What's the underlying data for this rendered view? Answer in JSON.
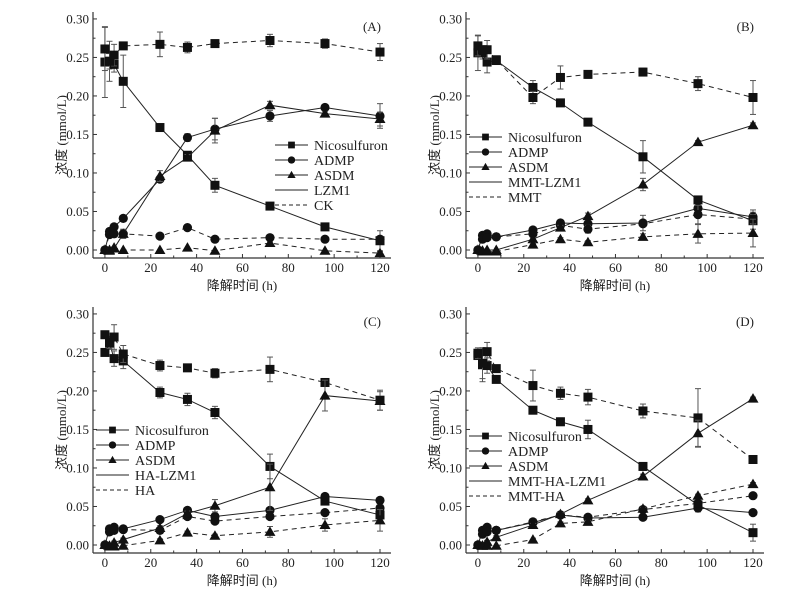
{
  "figure": {
    "panels_count": 4
  },
  "chart_data": [
    {
      "type": "line",
      "panel_label": "(A)",
      "xlabel": "降解时间 (h)",
      "ylabel": "浓度 (mmol/L)",
      "xlim": [
        -5.2,
        124.8
      ],
      "ylim": [
        -0.0104,
        0.309
      ],
      "xticks": [
        "0",
        "20",
        "40",
        "60",
        "80",
        "100",
        "120"
      ],
      "yticks": [
        "0.00",
        "0.05",
        "0.10",
        "0.15",
        "0.20",
        "0.25",
        "0.30"
      ],
      "legend_position": "center-right",
      "legend": [
        {
          "label": "Nicosulfuron",
          "marker": "square",
          "line": "solid"
        },
        {
          "label": "ADMP",
          "marker": "circle",
          "line": "solid"
        },
        {
          "label": "ASDM",
          "marker": "triangle",
          "line": "solid"
        },
        {
          "label": "LZM1",
          "marker": "none",
          "line": "solid"
        },
        {
          "label": "CK",
          "marker": "none",
          "line": "dashed"
        }
      ],
      "x": [
        0,
        2,
        4,
        8,
        24,
        36,
        48,
        72,
        96,
        120
      ],
      "series": [
        {
          "name": "Nicosulfuron LZM1",
          "marker": "square",
          "line": "solid",
          "values": [
            0.244,
            0.245,
            0.241,
            0.219,
            0.159,
            0.123,
            0.084,
            0.057,
            0.03,
            0.012
          ],
          "err": [
            0.046,
            0.01,
            0.01,
            0.034,
            0.002,
            0.004,
            0.009,
            0.003,
            0.002,
            0.013
          ]
        },
        {
          "name": "Nicosulfuron CK",
          "marker": "square",
          "line": "dashed",
          "values": [
            0.261,
            0.245,
            0.253,
            0.265,
            0.267,
            0.263,
            0.268,
            0.272,
            0.268,
            0.257
          ],
          "err": [
            0.028,
            0.026,
            0.014,
            0.002,
            0.016,
            0.007,
            0.002,
            0.008,
            0.006,
            0.011
          ]
        },
        {
          "name": "ADMP LZM1",
          "marker": "circle",
          "line": "solid",
          "values": [
            0.0,
            0.024,
            0.03,
            0.041,
            0.092,
            0.146,
            0.157,
            0.174,
            0.185,
            0.174
          ],
          "err": [
            0,
            0.003,
            0.002,
            0.002,
            0.004,
            0.005,
            0.014,
            0.007,
            0.004,
            0.016
          ]
        },
        {
          "name": "ADMP CK",
          "marker": "circle",
          "line": "dashed",
          "values": [
            0.0,
            0.02,
            0.021,
            0.021,
            0.018,
            0.029,
            0.014,
            0.016,
            0.014,
            0.014
          ],
          "err": [
            0,
            0.002,
            0.002,
            0.005,
            0.002,
            0.002,
            0.002,
            0.002,
            0.002,
            0.004
          ]
        },
        {
          "name": "ASDM LZM1",
          "marker": "triangle",
          "line": "solid",
          "values": [
            0.0,
            0.0,
            0.002,
            0.021,
            0.096,
            0.12,
            0.155,
            0.188,
            0.177,
            0.17
          ],
          "err": [
            0,
            0.002,
            0.002,
            0.006,
            0.007,
            0.004,
            0.016,
            0.005,
            0.003,
            0.009
          ]
        },
        {
          "name": "ASDM CK",
          "marker": "triangle",
          "line": "dashed",
          "values": [
            0.0,
            -0.001,
            0.003,
            0.0,
            0.0,
            0.003,
            -0.001,
            0.009,
            -0.001,
            -0.004
          ],
          "err": [
            0,
            0.001,
            0.001,
            0.001,
            0.001,
            0.001,
            0.001,
            0.002,
            0.001,
            0.002
          ]
        }
      ]
    },
    {
      "type": "line",
      "panel_label": "(B)",
      "xlabel": "降解时间 (h)",
      "ylabel": "浓度 (mmol/L)",
      "xlim": [
        -5.2,
        124.8
      ],
      "ylim": [
        -0.0104,
        0.309
      ],
      "xticks": [
        "0",
        "20",
        "40",
        "60",
        "80",
        "100",
        "120"
      ],
      "yticks": [
        "0.00",
        "0.05",
        "0.10",
        "0.15",
        "0.20",
        "0.25",
        "0.30"
      ],
      "legend_position": "center-left",
      "legend": [
        {
          "label": "Nicosulfuron",
          "marker": "square",
          "line": "solid"
        },
        {
          "label": "ADMP",
          "marker": "circle",
          "line": "solid"
        },
        {
          "label": "ASDM",
          "marker": "triangle",
          "line": "solid"
        },
        {
          "label": "MMT-LZM1",
          "marker": "none",
          "line": "solid"
        },
        {
          "label": "MMT",
          "marker": "none",
          "line": "dashed"
        }
      ],
      "x": [
        0,
        2,
        4,
        8,
        24,
        36,
        48,
        72,
        96,
        120
      ],
      "series": [
        {
          "name": "Nicosulfuron MMT-LZM1",
          "marker": "square",
          "line": "solid",
          "values": [
            0.256,
            0.256,
            0.244,
            0.246,
            0.211,
            0.191,
            0.166,
            0.121,
            0.065,
            0.038
          ],
          "err": [
            0.023,
            0.008,
            0.014,
            0.004,
            0.009,
            0.004,
            0.004,
            0.021,
            0.003,
            0.011
          ]
        },
        {
          "name": "Nicosulfuron MMT",
          "marker": "square",
          "line": "dashed",
          "values": [
            0.265,
            0.26,
            0.26,
            0.247,
            0.198,
            0.224,
            0.228,
            0.231,
            0.216,
            0.198
          ],
          "err": [
            0.013,
            0.004,
            0.012,
            0.004,
            0.008,
            0.015,
            0.005,
            0.005,
            0.009,
            0.022
          ]
        },
        {
          "name": "ADMP MMT-LZM1",
          "marker": "circle",
          "line": "solid",
          "values": [
            0.0,
            0.019,
            0.021,
            0.017,
            0.026,
            0.035,
            0.034,
            0.035,
            0.054,
            0.043
          ],
          "err": [
            0,
            0.002,
            0.002,
            0.002,
            0.002,
            0.002,
            0.002,
            0.01,
            0.002,
            0.009
          ]
        },
        {
          "name": "ADMP MMT",
          "marker": "circle",
          "line": "dashed",
          "values": [
            0.0,
            0.014,
            0.016,
            0.017,
            0.021,
            0.032,
            0.027,
            0.034,
            0.046,
            0.04
          ],
          "err": [
            0,
            0.002,
            0.002,
            0.002,
            0.002,
            0.002,
            0.005,
            0.002,
            0.012,
            0.006
          ]
        },
        {
          "name": "ASDM MMT-LZM1",
          "marker": "triangle",
          "line": "solid",
          "values": [
            0.0,
            -0.002,
            0.0,
            0.0,
            0.014,
            0.029,
            0.044,
            0.085,
            0.14,
            0.162
          ],
          "err": [
            0,
            0.001,
            0.001,
            0.001,
            0.002,
            0.003,
            0.004,
            0.008,
            0.002,
            0.003
          ]
        },
        {
          "name": "ASDM MMT",
          "marker": "triangle",
          "line": "dashed",
          "values": [
            0.0,
            -0.001,
            -0.002,
            -0.002,
            0.007,
            0.014,
            0.01,
            0.017,
            0.021,
            0.022
          ],
          "err": [
            0,
            0.001,
            0.001,
            0.001,
            0.002,
            0.002,
            0.002,
            0.004,
            0.012,
            0.018
          ]
        }
      ]
    },
    {
      "type": "line",
      "panel_label": "(C)",
      "xlabel": "降解时间 (h)",
      "ylabel": "浓度 (mmol/L)",
      "xlim": [
        -5.2,
        124.8
      ],
      "ylim": [
        -0.0104,
        0.309
      ],
      "xticks": [
        "0",
        "20",
        "40",
        "60",
        "80",
        "100",
        "120"
      ],
      "yticks": [
        "0.00",
        "0.05",
        "0.10",
        "0.15",
        "0.20",
        "0.25",
        "0.30"
      ],
      "legend_position": "center-left",
      "legend": [
        {
          "label": "Nicosulfuron",
          "marker": "square",
          "line": "solid"
        },
        {
          "label": "ADMP",
          "marker": "circle",
          "line": "solid"
        },
        {
          "label": "ASDM",
          "marker": "triangle",
          "line": "solid"
        },
        {
          "label": "HA-LZM1",
          "marker": "none",
          "line": "solid"
        },
        {
          "label": "HA",
          "marker": "none",
          "line": "dashed"
        }
      ],
      "x": [
        0,
        2,
        4,
        8,
        24,
        36,
        48,
        72,
        96,
        120
      ],
      "series": [
        {
          "name": "Nicosulfuron HA-LZM1",
          "marker": "square",
          "line": "solid",
          "values": [
            0.25,
            0.262,
            0.242,
            0.239,
            0.198,
            0.189,
            0.172,
            0.102,
            0.057,
            0.039
          ],
          "err": [
            0.004,
            0.008,
            0.01,
            0.01,
            0.007,
            0.008,
            0.008,
            0.016,
            0.003,
            0.004
          ]
        },
        {
          "name": "Nicosulfuron HA",
          "marker": "square",
          "line": "dashed",
          "values": [
            0.273,
            0.263,
            0.27,
            0.248,
            0.233,
            0.23,
            0.223,
            0.228,
            0.211,
            0.188
          ],
          "err": [
            0.002,
            0.008,
            0.016,
            0.011,
            0.007,
            0.003,
            0.006,
            0.016,
            0.005,
            0.013
          ]
        },
        {
          "name": "ADMP HA-LZM1",
          "marker": "circle",
          "line": "solid",
          "values": [
            0.0,
            0.021,
            0.023,
            0.021,
            0.033,
            0.045,
            0.037,
            0.045,
            0.063,
            0.058
          ],
          "err": [
            0,
            0.002,
            0.002,
            0.002,
            0.002,
            0.002,
            0.002,
            0.003,
            0.002,
            0.002
          ]
        },
        {
          "name": "ADMP HA",
          "marker": "circle",
          "line": "dashed",
          "values": [
            0.0,
            0.017,
            0.019,
            0.02,
            0.019,
            0.037,
            0.031,
            0.037,
            0.042,
            0.048
          ],
          "err": [
            0,
            0.002,
            0.002,
            0.002,
            0.002,
            0.002,
            0.002,
            0.002,
            0.002,
            0.003
          ]
        },
        {
          "name": "ASDM HA-LZM1",
          "marker": "triangle",
          "line": "solid",
          "values": [
            0.0,
            -0.001,
            0.003,
            0.007,
            0.022,
            0.041,
            0.051,
            0.075,
            0.194,
            0.187
          ],
          "err": [
            0,
            0.001,
            0.002,
            0.002,
            0.003,
            0.003,
            0.008,
            0.03,
            0.02,
            0.012
          ]
        },
        {
          "name": "ASDM HA",
          "marker": "triangle",
          "line": "dashed",
          "values": [
            0.0,
            -0.002,
            -0.002,
            -0.001,
            0.006,
            0.016,
            0.012,
            0.017,
            0.026,
            0.032
          ],
          "err": [
            0,
            0.001,
            0.001,
            0.001,
            0.002,
            0.002,
            0.002,
            0.007,
            0.008,
            0.014
          ]
        }
      ]
    },
    {
      "type": "line",
      "panel_label": "(D)",
      "xlabel": "降解时间 (h)",
      "ylabel": "浓度 (mmol/L)",
      "xlim": [
        -5.2,
        124.8
      ],
      "ylim": [
        -0.0104,
        0.309
      ],
      "xticks": [
        "0",
        "20",
        "40",
        "60",
        "80",
        "100",
        "120"
      ],
      "yticks": [
        "0.00",
        "0.05",
        "0.10",
        "0.15",
        "0.20",
        "0.25",
        "0.30"
      ],
      "legend_position": "center-left",
      "legend": [
        {
          "label": "Nicosulfuron",
          "marker": "square",
          "line": "solid"
        },
        {
          "label": "ADMP",
          "marker": "circle",
          "line": "solid"
        },
        {
          "label": "ASDM",
          "marker": "triangle",
          "line": "solid"
        },
        {
          "label": "MMT-HA-LZM1",
          "marker": "none",
          "line": "solid"
        },
        {
          "label": "MMT-HA",
          "marker": "none",
          "line": "dashed"
        }
      ],
      "x": [
        0,
        2,
        4,
        8,
        24,
        36,
        48,
        72,
        96,
        120
      ],
      "series": [
        {
          "name": "Nicosulfuron MMT-HA-LZM1",
          "marker": "square",
          "line": "solid",
          "values": [
            0.246,
            0.234,
            0.233,
            0.215,
            0.175,
            0.16,
            0.15,
            0.102,
            0.052,
            0.016
          ],
          "err": [
            0.004,
            0.022,
            0.01,
            0.004,
            0.004,
            0.005,
            0.012,
            0.005,
            0.003,
            0.011
          ]
        },
        {
          "name": "Nicosulfuron MMT-HA",
          "marker": "square",
          "line": "dashed",
          "values": [
            0.249,
            0.236,
            0.251,
            0.229,
            0.207,
            0.197,
            0.192,
            0.174,
            0.165,
            0.111
          ],
          "err": [
            0.007,
            0.02,
            0.012,
            0.002,
            0.02,
            0.008,
            0.01,
            0.009,
            0.038,
            0.003
          ]
        },
        {
          "name": "ADMP MMT-HA-LZM1",
          "marker": "circle",
          "line": "solid",
          "values": [
            0.0,
            0.019,
            0.023,
            0.019,
            0.029,
            0.039,
            0.035,
            0.036,
            0.048,
            0.042
          ],
          "err": [
            0,
            0.002,
            0.002,
            0.002,
            0.002,
            0.002,
            0.002,
            0.002,
            0.005,
            0.002
          ]
        },
        {
          "name": "ADMP MMT-HA",
          "marker": "circle",
          "line": "dashed",
          "values": [
            0.0,
            0.014,
            0.017,
            0.019,
            0.03,
            0.039,
            0.036,
            0.046,
            0.054,
            0.064
          ],
          "err": [
            0,
            0.002,
            0.002,
            0.002,
            0.002,
            0.002,
            0.002,
            0.002,
            0.002,
            0.002
          ]
        },
        {
          "name": "ASDM MMT-HA-LZM1",
          "marker": "triangle",
          "line": "solid",
          "values": [
            0.0,
            -0.001,
            0.004,
            0.01,
            0.026,
            0.04,
            0.058,
            0.089,
            0.145,
            0.19
          ],
          "err": [
            0,
            0.001,
            0.002,
            0.002,
            0.002,
            0.002,
            0.002,
            0.003,
            0.017,
            0.002
          ]
        },
        {
          "name": "ASDM MMT-HA",
          "marker": "triangle",
          "line": "dashed",
          "values": [
            0.0,
            -0.001,
            -0.001,
            -0.001,
            0.007,
            0.028,
            0.03,
            0.047,
            0.064,
            0.079
          ],
          "err": [
            0,
            0.001,
            0.001,
            0.001,
            0.001,
            0.002,
            0.002,
            0.002,
            0.002,
            0.002
          ]
        }
      ]
    }
  ]
}
